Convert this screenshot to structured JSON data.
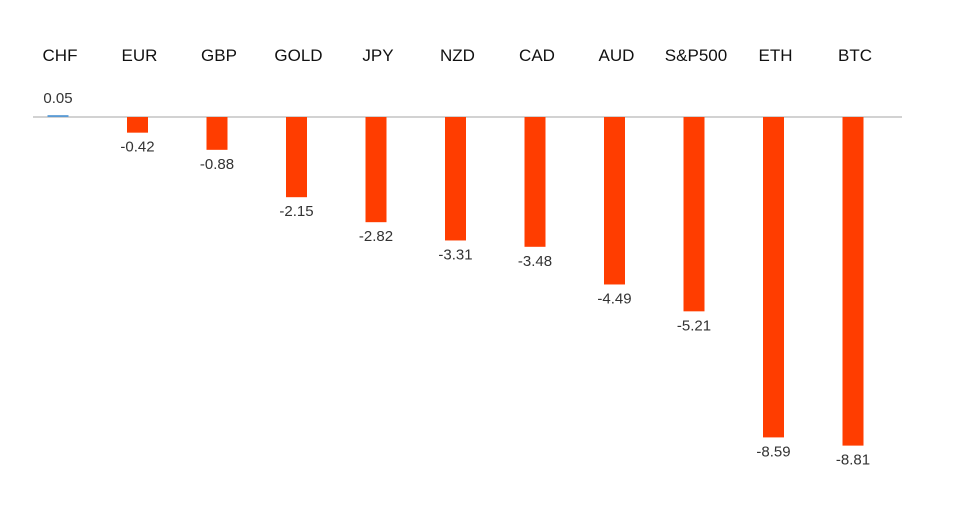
{
  "chart_data": {
    "type": "bar",
    "title": "",
    "xlabel": "",
    "ylabel": "",
    "categories": [
      "CHF",
      "EUR",
      "GBP",
      "GOLD",
      "JPY",
      "NZD",
      "CAD",
      "AUD",
      "S&P500",
      "ETH",
      "BTC"
    ],
    "values": [
      0.05,
      -0.42,
      -0.88,
      -2.15,
      -2.82,
      -3.31,
      -3.48,
      -4.49,
      -5.21,
      -8.59,
      -8.81
    ],
    "value_labels": [
      "0.05",
      "-0.42",
      "-0.88",
      "-2.15",
      "-2.82",
      "-3.31",
      "-3.48",
      "-4.49",
      "-5.21",
      "-8.59",
      "-8.81"
    ],
    "ylim": [
      -9.5,
      0.5
    ],
    "grid": false,
    "legend": "none",
    "colors": {
      "positive": "#5b9bd5",
      "negative": "#ff3d00",
      "zero_line": "#a6a6a6"
    }
  }
}
